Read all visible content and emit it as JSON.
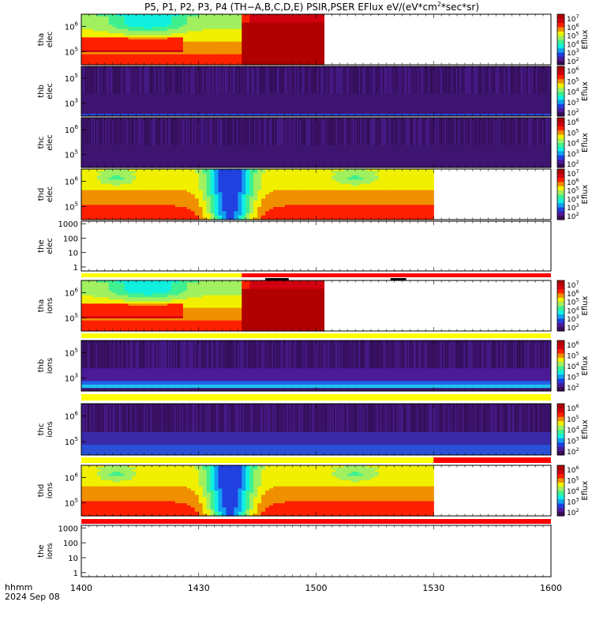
{
  "title": "P5, P1, P2, P3, P4 (TH−A,B,C,D,E) PSIR,PSER EFlux eV/(eV*cm",
  "title_sup": "2",
  "title_end": "*sec*sr)",
  "colorbar_label": "Eflux",
  "footer": {
    "line1": "hhmm",
    "line2": "2024 Sep 08"
  },
  "chart_data": {
    "type": "heatmap",
    "x": {
      "ticks": [
        "1400",
        "1430",
        "1500",
        "1530",
        "1600"
      ],
      "range_minutes": [
        0,
        120
      ]
    },
    "panels": [
      {
        "name": "tha_elec",
        "ylabel": [
          "tha",
          "elec"
        ],
        "yticks": [
          "10^6",
          "10^5"
        ],
        "kind": "spec",
        "pattern": "tha",
        "data_end_min": 62,
        "cbar_ticks": [
          "10^7",
          "10^6",
          "10^5",
          "10^4",
          "10^3",
          "10^2"
        ]
      },
      {
        "name": "thb_elec",
        "ylabel": [
          "thb",
          "elec"
        ],
        "yticks": [
          "10^5",
          "10^3"
        ],
        "kind": "noise",
        "pattern": "noise_elec",
        "data_end_min": 120,
        "cbar_ticks": [
          "10^6",
          "10^5",
          "10^4",
          "10^3",
          "10^2"
        ]
      },
      {
        "name": "thc_elec",
        "ylabel": [
          "thc",
          "elec"
        ],
        "yticks": [
          "10^6",
          "10^5"
        ],
        "kind": "noise",
        "pattern": "noise_elec",
        "data_end_min": 120,
        "cbar_ticks": [
          "10^6",
          "10^5",
          "10^4",
          "10^3",
          "10^2"
        ]
      },
      {
        "name": "thd_elec",
        "ylabel": [
          "thd",
          "elec"
        ],
        "yticks": [
          "10^6",
          "10^5"
        ],
        "kind": "spec",
        "pattern": "thd",
        "data_end_min": 90,
        "cbar_ticks": [
          "10^7",
          "10^6",
          "10^5",
          "10^4",
          "10^3",
          "10^2"
        ]
      },
      {
        "name": "the_elec",
        "ylabel": [
          "the",
          "elec"
        ],
        "yticks": [
          "1000",
          "100",
          "10",
          "1"
        ],
        "kind": "empty"
      },
      {
        "name": "tha_ions",
        "ylabel": [
          "tha",
          "ions"
        ],
        "yticks": [
          "10^6",
          "10^5"
        ],
        "kind": "spec",
        "pattern": "tha",
        "data_end_min": 62,
        "cbar_ticks": [
          "10^7",
          "10^6",
          "10^5",
          "10^4",
          "10^3",
          "10^2"
        ]
      },
      {
        "name": "thb_ions",
        "ylabel": [
          "thb",
          "ions"
        ],
        "yticks": [
          "10^5",
          "10^3"
        ],
        "kind": "noise",
        "pattern": "noise_ions",
        "data_end_min": 120,
        "cbar_ticks": [
          "10^6",
          "10^5",
          "10^4",
          "10^3",
          "10^2"
        ]
      },
      {
        "name": "thc_ions",
        "ylabel": [
          "thc",
          "ions"
        ],
        "yticks": [
          "10^6",
          "10^5"
        ],
        "kind": "noise",
        "pattern": "noise_ions2",
        "data_end_min": 120,
        "cbar_ticks": [
          "10^6",
          "10^5",
          "10^4",
          "10^3",
          "10^2"
        ]
      },
      {
        "name": "thd_ions",
        "ylabel": [
          "thd",
          "ions"
        ],
        "yticks": [
          "10^6",
          "10^5"
        ],
        "kind": "spec",
        "pattern": "thd",
        "data_end_min": 90,
        "cbar_ticks": [
          "10^6",
          "10^5",
          "10^4",
          "10^3",
          "10^2"
        ]
      },
      {
        "name": "the_ions",
        "ylabel": [
          "the",
          "ions"
        ],
        "yticks": [
          "1000",
          "100",
          "10",
          "1"
        ],
        "kind": "empty"
      }
    ],
    "status_bars": [
      {
        "after_panel": 4,
        "segments": [
          {
            "from": 0,
            "to": 41,
            "color": "#ffff00"
          },
          {
            "from": 41,
            "to": 120,
            "color": "#ff0000"
          }
        ],
        "marks": [
          [
            47,
            53
          ],
          [
            79,
            83
          ]
        ]
      },
      {
        "after_panel": 5,
        "segments": [
          {
            "from": 0,
            "to": 120,
            "color": "#ffff00"
          }
        ]
      },
      {
        "after_panel": 6,
        "segments": [
          {
            "from": 0,
            "to": 120,
            "color": "#ffff00"
          }
        ]
      },
      {
        "after_panel": 7,
        "segments": [
          {
            "from": 0,
            "to": 90,
            "color": "#ffff00"
          },
          {
            "from": 90,
            "to": 120,
            "color": "#ff0000"
          }
        ]
      },
      {
        "after_panel": 8,
        "segments": [
          {
            "from": 0,
            "to": 120,
            "color": "#ff0000"
          }
        ]
      }
    ],
    "colormap": [
      "#3a0a55",
      "#4a1a99",
      "#2040e0",
      "#10a0f0",
      "#10f0e0",
      "#40f090",
      "#a0f060",
      "#f0f000",
      "#f09000",
      "#ff2000",
      "#d00010",
      "#b00000"
    ]
  }
}
